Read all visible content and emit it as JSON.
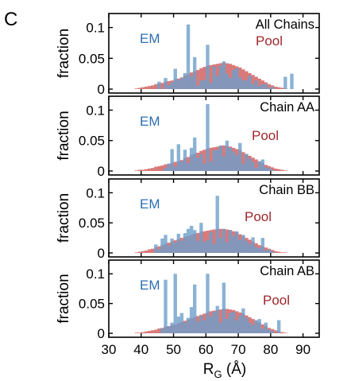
{
  "figure": {
    "panel_label": "C",
    "xlabel_main": "R",
    "xlabel_sub": "G",
    "xlabel_unit": " (Å)"
  },
  "colors": {
    "em": "#6f9fca",
    "pool": "#d05a5a",
    "em_text": "#2e6fb0",
    "pool_text": "#a0262a"
  },
  "chart_data": [
    {
      "type": "bar",
      "title": "All Chains",
      "ylabel": "fraction",
      "xlim": [
        30,
        95
      ],
      "ylim": [
        0,
        0.115
      ],
      "xticks": [
        30,
        40,
        50,
        60,
        70,
        80,
        90
      ],
      "yticks": [
        0,
        0.05,
        0.1
      ],
      "ytick_labels": [
        "0",
        "0.05",
        "0.1"
      ],
      "bin_start": 38,
      "bin_width": 1,
      "series": [
        {
          "name": "EM",
          "values": [
            0,
            0,
            0,
            0,
            0,
            0,
            0,
            0.012,
            0,
            0.018,
            0.006,
            0.011,
            0.033,
            0.015,
            0.018,
            0.026,
            0.105,
            0.021,
            0.052,
            0.006,
            0.014,
            0.015,
            0.072,
            0.01,
            0.037,
            0.021,
            0.038,
            0.045,
            0.025,
            0.018,
            0.031,
            0.034,
            0.019,
            0.014,
            0.015,
            0.022,
            0.008,
            0.014,
            0.005,
            0.008,
            0.008,
            0.002,
            0.004,
            0,
            0,
            0,
            0.02,
            0,
            0.025
          ]
        },
        {
          "name": "Pool",
          "values": [
            0.001,
            0.002,
            0.003,
            0.004,
            0.005,
            0.006,
            0.008,
            0.009,
            0.01,
            0.012,
            0.013,
            0.014,
            0.016,
            0.017,
            0.019,
            0.022,
            0.024,
            0.027,
            0.029,
            0.031,
            0.034,
            0.036,
            0.038,
            0.039,
            0.04,
            0.041,
            0.042,
            0.043,
            0.042,
            0.041,
            0.039,
            0.037,
            0.035,
            0.032,
            0.029,
            0.026,
            0.023,
            0.02,
            0.017,
            0.014,
            0.011,
            0.008,
            0.006,
            0.004,
            0.003,
            0.002,
            0.001,
            0,
            0
          ]
        }
      ]
    },
    {
      "type": "bar",
      "title": "Chain AA",
      "ylabel": "fraction",
      "xlim": [
        30,
        95
      ],
      "ylim": [
        0,
        0.115
      ],
      "xticks": [
        30,
        40,
        50,
        60,
        70,
        80,
        90
      ],
      "yticks": [
        0,
        0.05,
        0.1
      ],
      "ytick_labels": [
        "0",
        "0.05",
        "0.1"
      ],
      "bin_start": 38,
      "bin_width": 1,
      "series": [
        {
          "name": "EM",
          "values": [
            0,
            0,
            0,
            0,
            0,
            0,
            0,
            0,
            0,
            0.005,
            0.012,
            0.036,
            0.007,
            0.044,
            0.016,
            0.035,
            0.013,
            0.038,
            0.055,
            0.022,
            0.028,
            0.012,
            0.11,
            0.015,
            0.034,
            0.035,
            0.042,
            0.024,
            0.05,
            0.038,
            0.032,
            0.026,
            0.046,
            0.012,
            0.028,
            0.02,
            0.015,
            0.005,
            0.016,
            0.019,
            0.006,
            0.005,
            0.002,
            0,
            0,
            0,
            0,
            0,
            0
          ]
        },
        {
          "name": "Pool",
          "values": [
            0.001,
            0.002,
            0.002,
            0.003,
            0.004,
            0.005,
            0.007,
            0.008,
            0.009,
            0.011,
            0.012,
            0.013,
            0.015,
            0.016,
            0.018,
            0.021,
            0.023,
            0.026,
            0.028,
            0.03,
            0.033,
            0.035,
            0.037,
            0.038,
            0.039,
            0.04,
            0.041,
            0.042,
            0.041,
            0.04,
            0.038,
            0.036,
            0.034,
            0.031,
            0.028,
            0.025,
            0.022,
            0.019,
            0.016,
            0.013,
            0.01,
            0.008,
            0.006,
            0.004,
            0.003,
            0.002,
            0.001,
            0,
            0
          ]
        }
      ]
    },
    {
      "type": "bar",
      "title": "Chain BB",
      "ylabel": "fraction",
      "xlim": [
        30,
        95
      ],
      "ylim": [
        0,
        0.115
      ],
      "xticks": [
        30,
        40,
        50,
        60,
        70,
        80,
        90
      ],
      "yticks": [
        0,
        0.05,
        0.1
      ],
      "ytick_labels": [
        "0",
        "0.05",
        "0.1"
      ],
      "bin_start": 38,
      "bin_width": 1,
      "series": [
        {
          "name": "EM",
          "values": [
            0,
            0,
            0,
            0,
            0,
            0,
            0.014,
            0.006,
            0.024,
            0.03,
            0.012,
            0.024,
            0.017,
            0.032,
            0.02,
            0.033,
            0.04,
            0.045,
            0.038,
            0.02,
            0.05,
            0.018,
            0.022,
            0.035,
            0.015,
            0.095,
            0.025,
            0.04,
            0.018,
            0.038,
            0.028,
            0.036,
            0.022,
            0.03,
            0.02,
            0.015,
            0.026,
            0.01,
            0.008,
            0.025,
            0.004,
            0.006,
            0.002,
            0,
            0,
            0,
            0,
            0,
            0
          ]
        },
        {
          "name": "Pool",
          "values": [
            0.001,
            0.002,
            0.003,
            0.004,
            0.006,
            0.007,
            0.009,
            0.011,
            0.013,
            0.015,
            0.017,
            0.019,
            0.021,
            0.023,
            0.025,
            0.027,
            0.028,
            0.03,
            0.032,
            0.033,
            0.035,
            0.036,
            0.037,
            0.038,
            0.039,
            0.04,
            0.04,
            0.04,
            0.039,
            0.038,
            0.036,
            0.034,
            0.031,
            0.028,
            0.025,
            0.022,
            0.019,
            0.016,
            0.013,
            0.011,
            0.009,
            0.007,
            0.005,
            0.003,
            0.002,
            0.001,
            0.001,
            0,
            0
          ]
        }
      ]
    },
    {
      "type": "bar",
      "title": "Chain AB",
      "ylabel": "fraction",
      "xlim": [
        30,
        95
      ],
      "ylim": [
        0,
        0.115
      ],
      "xticks": [
        30,
        40,
        50,
        60,
        70,
        80,
        90
      ],
      "yticks": [
        0,
        0.05,
        0.1
      ],
      "ytick_labels": [
        "0",
        "0.05",
        "0.1"
      ],
      "bin_start": 38,
      "bin_width": 1,
      "series": [
        {
          "name": "EM",
          "values": [
            0,
            0,
            0,
            0,
            0,
            0,
            0,
            0,
            0.008,
            0.09,
            0.012,
            0.018,
            0.1,
            0.028,
            0.034,
            0.018,
            0.026,
            0.044,
            0.082,
            0.02,
            0.03,
            0.022,
            0.1,
            0.028,
            0.036,
            0.046,
            0.018,
            0.085,
            0.024,
            0.034,
            0.036,
            0.022,
            0.03,
            0.042,
            0.026,
            0.018,
            0.014,
            0.022,
            0.024,
            0.008,
            0.018,
            0.006,
            0.004,
            0,
            0.022,
            0,
            0,
            0,
            0
          ]
        },
        {
          "name": "Pool",
          "values": [
            0.001,
            0.001,
            0.002,
            0.003,
            0.004,
            0.005,
            0.006,
            0.008,
            0.009,
            0.011,
            0.012,
            0.014,
            0.015,
            0.017,
            0.019,
            0.021,
            0.023,
            0.025,
            0.027,
            0.029,
            0.031,
            0.033,
            0.035,
            0.037,
            0.038,
            0.039,
            0.04,
            0.041,
            0.041,
            0.04,
            0.039,
            0.037,
            0.035,
            0.033,
            0.03,
            0.027,
            0.024,
            0.021,
            0.018,
            0.015,
            0.012,
            0.009,
            0.007,
            0.005,
            0.003,
            0.002,
            0.001,
            0,
            0
          ]
        }
      ]
    }
  ]
}
